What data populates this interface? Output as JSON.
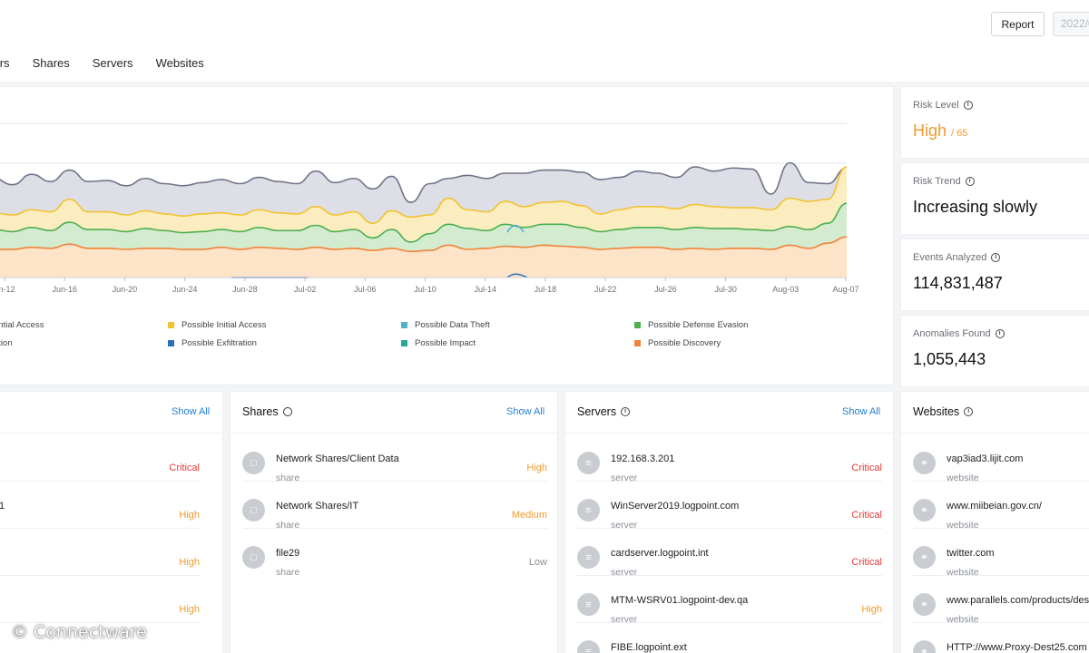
{
  "header": {
    "report_label": "Report",
    "date_value": "2022/0",
    "tabs": [
      "sers",
      "Shares",
      "Servers",
      "Websites"
    ]
  },
  "chart_data": {
    "type": "area",
    "stacked": true,
    "x_ticks": [
      "un-12",
      "Jun-16",
      "Jun-20",
      "Jun-24",
      "Jun-28",
      "Jul-02",
      "Jul-06",
      "Jul-10",
      "Jul-14",
      "Jul-18",
      "Jul-22",
      "Jul-26",
      "Jul-30",
      "Aug-03",
      "Aug-07"
    ],
    "grid": true,
    "legend": [
      {
        "label": "ential Access",
        "color": "#6f7488"
      },
      {
        "label": "Possible Initial Access",
        "color": "#f2c230"
      },
      {
        "label": "Possible Data Theft",
        "color": "#4fb3cf"
      },
      {
        "label": "Possible Defense Evasion",
        "color": "#4caf50"
      },
      {
        "label": "ution",
        "color": "#8a8f96"
      },
      {
        "label": "Possible Exfiltration",
        "color": "#2c6fb7"
      },
      {
        "label": "Possible Impact",
        "color": "#26a69a"
      },
      {
        "label": "Possible Discovery",
        "color": "#f0833a"
      }
    ],
    "series": [
      {
        "color": "#f0833a",
        "fill": "#fde3c8",
        "values": [
          27,
          27,
          29,
          28,
          32,
          28,
          28,
          27,
          28,
          28,
          27,
          27,
          29,
          27,
          29,
          28,
          27,
          29,
          27,
          28,
          26,
          28,
          25,
          26,
          31,
          27,
          28,
          30,
          29,
          31,
          30,
          29,
          27,
          28,
          29,
          29,
          27,
          28,
          27,
          28,
          28,
          27,
          31,
          28,
          33,
          39
        ]
      },
      {
        "color": "#4caf50",
        "fill": "#d3ebcf",
        "values": [
          46,
          44,
          48,
          45,
          53,
          46,
          46,
          44,
          47,
          45,
          43,
          44,
          46,
          44,
          48,
          45,
          45,
          50,
          44,
          46,
          38,
          46,
          34,
          42,
          51,
          47,
          45,
          51,
          48,
          51,
          51,
          48,
          44,
          46,
          48,
          48,
          46,
          48,
          47,
          47,
          46,
          45,
          49,
          46,
          52,
          71
        ]
      },
      {
        "color": "#f2c230",
        "fill": "#fbedbf",
        "values": [
          62,
          60,
          65,
          63,
          75,
          63,
          63,
          60,
          64,
          61,
          59,
          61,
          62,
          60,
          65,
          62,
          61,
          68,
          60,
          63,
          52,
          64,
          58,
          60,
          76,
          65,
          63,
          73,
          68,
          72,
          73,
          69,
          61,
          65,
          68,
          68,
          66,
          70,
          68,
          67,
          67,
          65,
          76,
          73,
          75,
          106
        ]
      },
      {
        "color": "#6f7488",
        "fill": "#dedee6",
        "values": [
          95,
          89,
          99,
          92,
          103,
          92,
          93,
          88,
          95,
          90,
          88,
          91,
          94,
          90,
          96,
          92,
          90,
          102,
          91,
          95,
          85,
          97,
          72,
          90,
          95,
          98,
          95,
          100,
          100,
          103,
          103,
          101,
          94,
          96,
          102,
          100,
          96,
          106,
          102,
          105,
          104,
          80,
          110,
          91,
          90,
          105
        ]
      }
    ]
  },
  "risk": {
    "level_label": "Risk Level",
    "level_value": "High",
    "level_score": "/ 65",
    "trend_label": "Risk Trend",
    "trend_value": "Increasing slowly",
    "events_label": "Events Analyzed",
    "events_value": "114,831,487",
    "anomalies_label": "Anomalies Found",
    "anomalies_value": "1,055,443"
  },
  "users": {
    "show_all": "Show All",
    "rows": [
      {
        "name": "",
        "severity": "Critical"
      },
      {
        "name": "1",
        "severity": "High"
      },
      {
        "name": "",
        "severity": "High"
      },
      {
        "name": "",
        "severity": "High"
      }
    ]
  },
  "shares": {
    "title": "Shares",
    "show_all": "Show All",
    "rows": [
      {
        "name": "Network Shares/Client Data",
        "type": "share",
        "severity": "High"
      },
      {
        "name": "Network Shares/IT",
        "type": "share",
        "severity": "Medium"
      },
      {
        "name": "file29",
        "type": "share",
        "severity": "Low"
      }
    ]
  },
  "servers": {
    "title": "Servers",
    "show_all": "Show All",
    "rows": [
      {
        "name": "192.168.3.201",
        "type": "server",
        "severity": "Critical"
      },
      {
        "name": "WinServer2019.logpoint.com",
        "type": "server",
        "severity": "Critical"
      },
      {
        "name": "cardserver.logpoint.int",
        "type": "server",
        "severity": "Critical"
      },
      {
        "name": "MTM-WSRV01.logpoint-dev.qa",
        "type": "server",
        "severity": "High"
      },
      {
        "name": "FIBE.logpoint.ext",
        "type": "",
        "severity": ""
      }
    ]
  },
  "websites": {
    "title": "Websites",
    "rows": [
      {
        "name": "vap3iad3.lijit.com",
        "type": "website"
      },
      {
        "name": "www.miibeian.gov.cn/",
        "type": "website"
      },
      {
        "name": "twitter.com",
        "type": "website"
      },
      {
        "name": "www.parallels.com/products/des",
        "type": "website"
      },
      {
        "name": "HTTP://www.Proxy-Dest25.com",
        "type": ""
      }
    ]
  },
  "watermark": "© Connectware"
}
